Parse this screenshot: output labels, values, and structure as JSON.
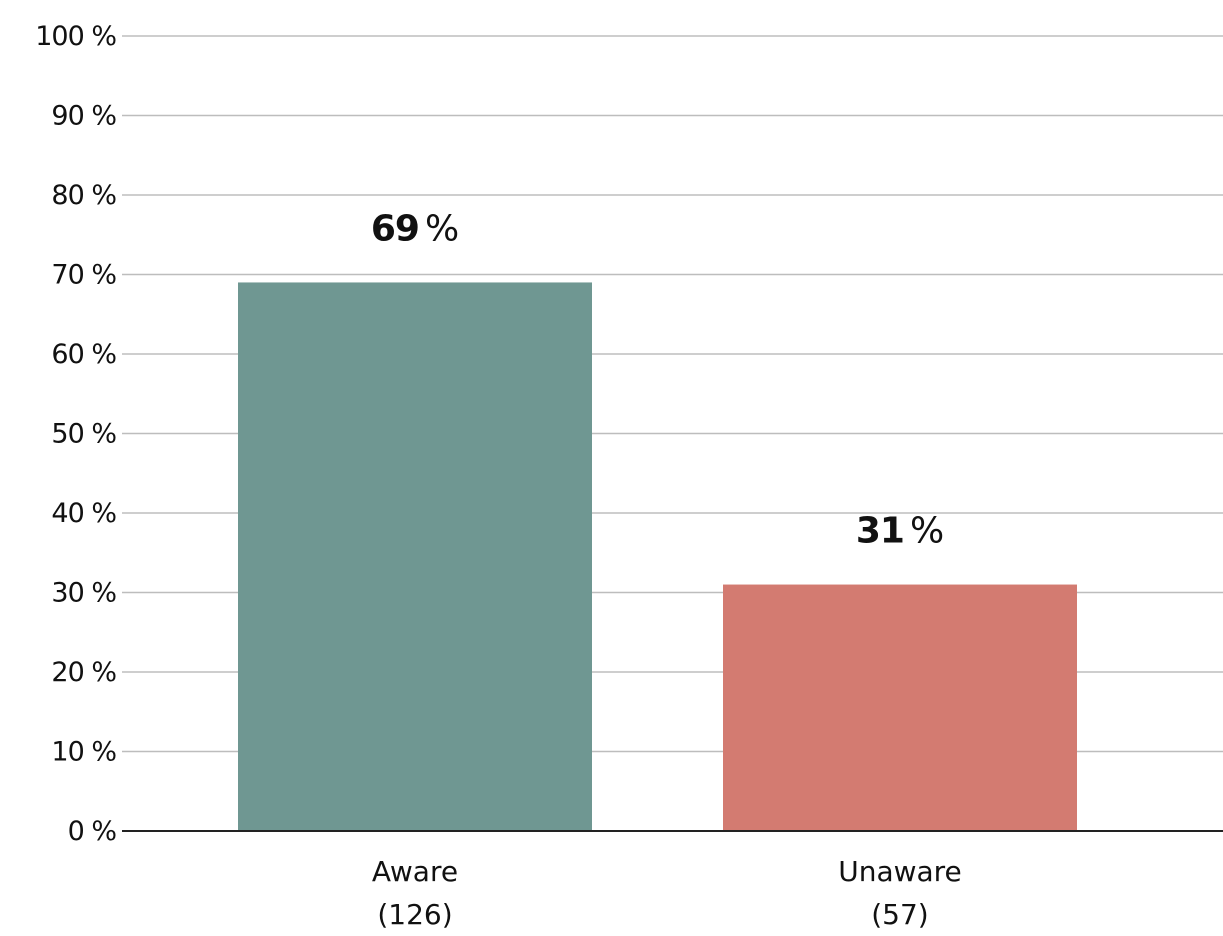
{
  "chart_data": {
    "type": "bar",
    "title": "",
    "xlabel": "",
    "ylabel": "",
    "ylim": [
      0,
      100
    ],
    "y_ticks": [
      0,
      10,
      20,
      30,
      40,
      50,
      60,
      70,
      80,
      90,
      100
    ],
    "y_tick_suffix": " %",
    "grid": true,
    "categories": [
      "Aware",
      "Unaware"
    ],
    "category_counts": [
      "(126)",
      "(57)"
    ],
    "values": [
      69,
      31
    ],
    "value_labels": [
      "69",
      "31"
    ],
    "value_label_suffix": "%",
    "colors": [
      "#6f9792",
      "#d37b71"
    ]
  }
}
